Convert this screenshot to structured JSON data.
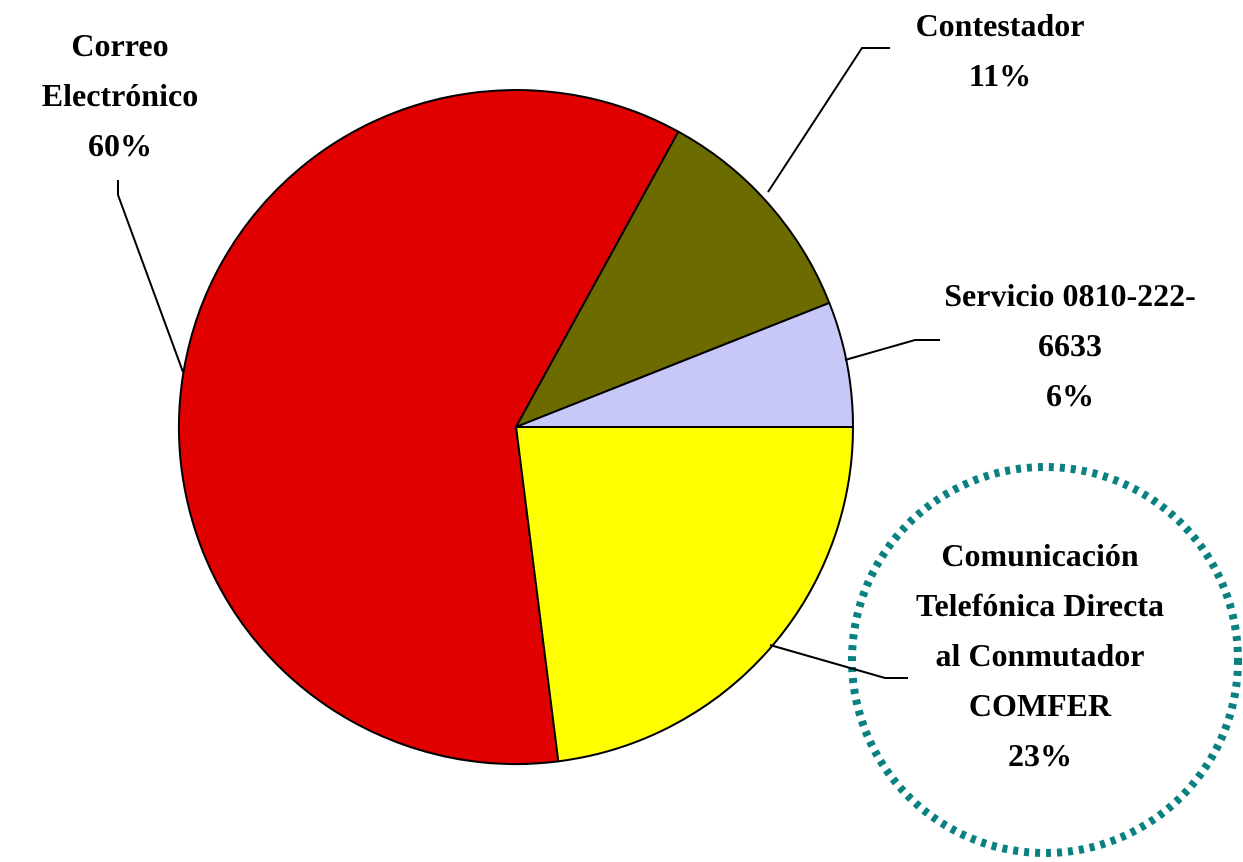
{
  "chart_data": {
    "type": "pie",
    "categories": [
      "Comunicación Telefónica Directa al Conmutador COMFER",
      "Correo Electrónico",
      "Contestador",
      "Servicio 0810-222-6633"
    ],
    "values": [
      23,
      60,
      11,
      6
    ],
    "value_labels": [
      "23%",
      "60%",
      "11%",
      "6%"
    ],
    "colors": [
      "#ffff00",
      "#e00000",
      "#6b6b00",
      "#c8c8f8"
    ]
  }
}
